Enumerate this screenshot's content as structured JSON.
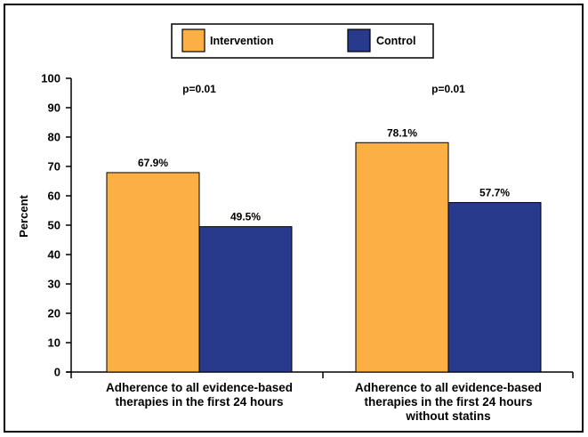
{
  "chart_data": {
    "type": "bar",
    "title": "",
    "xlabel": "",
    "ylabel": "Percent",
    "ylim": [
      0,
      100
    ],
    "yticks": [
      0,
      10,
      20,
      30,
      40,
      50,
      60,
      70,
      80,
      90,
      100
    ],
    "grid": false,
    "legend_position": "top-center",
    "categories": [
      [
        "Adherence to all evidence-based",
        "therapies in the first 24 hours"
      ],
      [
        "Adherence to all evidence-based",
        "therapies in the first 24 hours",
        "without statins"
      ]
    ],
    "series": [
      {
        "name": "Intervention",
        "color": "#FBAF45",
        "values": [
          67.9,
          78.1
        ],
        "labels": [
          "67.9%",
          "78.1%"
        ]
      },
      {
        "name": "Control",
        "color": "#283A8C",
        "values": [
          49.5,
          57.7
        ],
        "labels": [
          "49.5%",
          "57.7%"
        ]
      }
    ],
    "annotations": [
      "p=0.01",
      "p=0.01"
    ]
  }
}
